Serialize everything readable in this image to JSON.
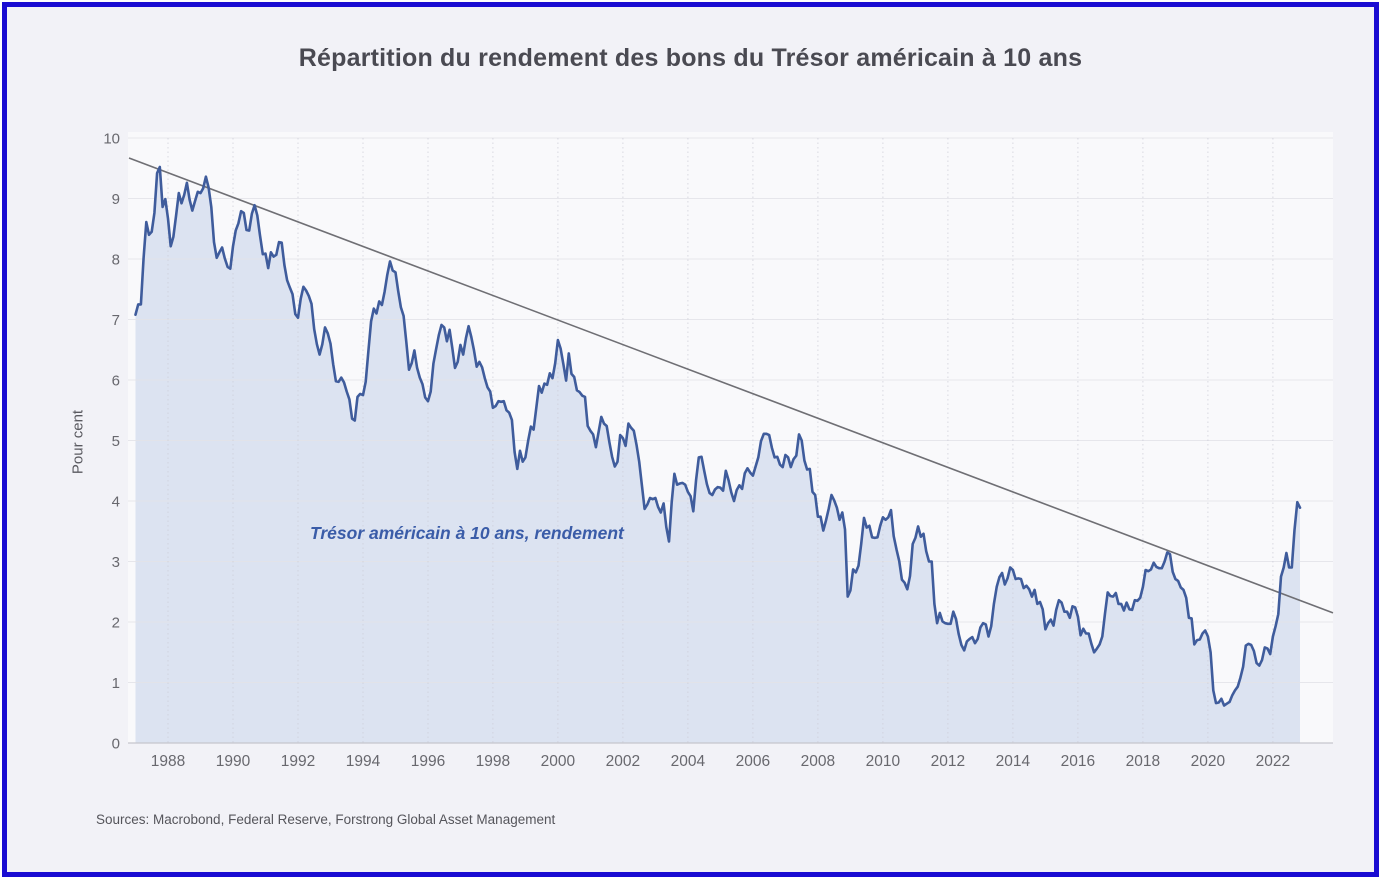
{
  "title": "Répartition du rendement des bons du Trésor américain à 10 ans",
  "y_axis_title": "Pour cent",
  "annotation": "Trésor américain à 10 ans, rendement",
  "source_note": "Sources: Macrobond, Federal Reserve, Forstrong Global Asset Management",
  "frame": {
    "border_color": "#1a0cd2",
    "background_color": "#f2f2f7"
  },
  "chart_data": {
    "type": "area",
    "title": "Répartition du rendement des bons du Trésor américain à 10 ans",
    "series_name": "Trésor américain à 10 ans, rendement",
    "xlabel": "",
    "ylabel": "Pour cent",
    "x_start_year": 1987,
    "frequency": "monthly",
    "xlim": [
      1986.77,
      2023.85
    ],
    "ylim": [
      0,
      10
    ],
    "x_ticks": [
      1988,
      1990,
      1992,
      1994,
      1996,
      1998,
      2000,
      2002,
      2004,
      2006,
      2008,
      2010,
      2012,
      2014,
      2016,
      2018,
      2020,
      2022
    ],
    "y_ticks": [
      0,
      1,
      2,
      3,
      4,
      5,
      6,
      7,
      8,
      9,
      10
    ],
    "grid": true,
    "legend_position": "none",
    "values": [
      7.08,
      7.25,
      7.25,
      8.02,
      8.61,
      8.4,
      8.45,
      8.76,
      9.42,
      9.52,
      8.86,
      8.99,
      8.67,
      8.21,
      8.37,
      8.72,
      9.09,
      8.92,
      9.06,
      9.26,
      8.98,
      8.8,
      8.96,
      9.11,
      9.09,
      9.17,
      9.36,
      9.18,
      8.86,
      8.28,
      8.02,
      8.11,
      8.19,
      8.01,
      7.87,
      7.84,
      8.21,
      8.47,
      8.59,
      8.79,
      8.76,
      8.48,
      8.47,
      8.75,
      8.89,
      8.72,
      8.39,
      8.08,
      8.09,
      7.85,
      8.11,
      8.04,
      8.07,
      8.28,
      8.27,
      7.9,
      7.65,
      7.53,
      7.42,
      7.09,
      7.03,
      7.34,
      7.54,
      7.48,
      7.39,
      7.26,
      6.84,
      6.59,
      6.42,
      6.59,
      6.87,
      6.77,
      6.6,
      6.26,
      5.98,
      5.97,
      6.04,
      5.96,
      5.81,
      5.68,
      5.36,
      5.33,
      5.72,
      5.77,
      5.75,
      5.97,
      6.48,
      6.97,
      7.18,
      7.1,
      7.3,
      7.24,
      7.46,
      7.74,
      7.96,
      7.81,
      7.78,
      7.47,
      7.2,
      7.06,
      6.63,
      6.17,
      6.28,
      6.49,
      6.2,
      6.04,
      5.93,
      5.71,
      5.65,
      5.81,
      6.27,
      6.51,
      6.74,
      6.91,
      6.87,
      6.64,
      6.83,
      6.53,
      6.2,
      6.3,
      6.58,
      6.42,
      6.69,
      6.89,
      6.71,
      6.49,
      6.22,
      6.3,
      6.21,
      6.03,
      5.88,
      5.81,
      5.54,
      5.57,
      5.65,
      5.64,
      5.65,
      5.5,
      5.46,
      5.34,
      4.81,
      4.53,
      4.83,
      4.65,
      4.72,
      5.0,
      5.23,
      5.18,
      5.54,
      5.9,
      5.79,
      5.94,
      5.92,
      6.11,
      6.03,
      6.28,
      6.66,
      6.52,
      6.26,
      5.99,
      6.44,
      6.1,
      6.05,
      5.83,
      5.8,
      5.74,
      5.72,
      5.24,
      5.16,
      5.1,
      4.89,
      5.14,
      5.39,
      5.28,
      5.24,
      4.97,
      4.73,
      4.57,
      4.65,
      5.09,
      5.04,
      4.91,
      5.28,
      5.21,
      5.16,
      4.93,
      4.65,
      4.26,
      3.87,
      3.94,
      4.05,
      4.03,
      4.05,
      3.9,
      3.81,
      3.96,
      3.57,
      3.33,
      3.98,
      4.45,
      4.27,
      4.29,
      4.3,
      4.27,
      4.15,
      4.08,
      3.83,
      4.35,
      4.72,
      4.73,
      4.5,
      4.28,
      4.13,
      4.1,
      4.19,
      4.23,
      4.22,
      4.17,
      4.5,
      4.34,
      4.14,
      4.0,
      4.18,
      4.26,
      4.2,
      4.46,
      4.54,
      4.47,
      4.42,
      4.57,
      4.72,
      4.99,
      5.11,
      5.11,
      5.09,
      4.88,
      4.72,
      4.73,
      4.6,
      4.56,
      4.76,
      4.72,
      4.56,
      4.69,
      4.75,
      5.1,
      5.0,
      4.67,
      4.52,
      4.53,
      4.15,
      4.1,
      3.74,
      3.74,
      3.51,
      3.68,
      3.88,
      4.1,
      4.01,
      3.89,
      3.69,
      3.81,
      3.53,
      2.42,
      2.52,
      2.87,
      2.82,
      2.93,
      3.29,
      3.72,
      3.56,
      3.59,
      3.4,
      3.39,
      3.4,
      3.59,
      3.73,
      3.69,
      3.73,
      3.85,
      3.42,
      3.2,
      3.01,
      2.7,
      2.65,
      2.54,
      2.76,
      3.29,
      3.39,
      3.58,
      3.41,
      3.46,
      3.17,
      3.0,
      3.0,
      2.3,
      1.98,
      2.15,
      2.01,
      1.98,
      1.97,
      1.97,
      2.17,
      2.05,
      1.8,
      1.62,
      1.53,
      1.68,
      1.72,
      1.75,
      1.65,
      1.72,
      1.91,
      1.98,
      1.96,
      1.76,
      1.93,
      2.3,
      2.58,
      2.74,
      2.81,
      2.62,
      2.72,
      2.9,
      2.86,
      2.71,
      2.72,
      2.71,
      2.56,
      2.6,
      2.54,
      2.42,
      2.53,
      2.3,
      2.33,
      2.21,
      1.88,
      1.98,
      2.04,
      1.94,
      2.2,
      2.36,
      2.32,
      2.17,
      2.17,
      2.07,
      2.26,
      2.24,
      2.09,
      1.78,
      1.89,
      1.81,
      1.81,
      1.64,
      1.5,
      1.56,
      1.63,
      1.76,
      2.14,
      2.49,
      2.43,
      2.42,
      2.48,
      2.3,
      2.3,
      2.19,
      2.32,
      2.21,
      2.2,
      2.36,
      2.35,
      2.4,
      2.58,
      2.86,
      2.84,
      2.87,
      2.98,
      2.91,
      2.89,
      2.89,
      3.0,
      3.15,
      3.12,
      2.83,
      2.71,
      2.68,
      2.57,
      2.53,
      2.4,
      2.07,
      2.06,
      1.63,
      1.7,
      1.71,
      1.81,
      1.86,
      1.76,
      1.5,
      0.87,
      0.66,
      0.67,
      0.73,
      0.62,
      0.65,
      0.68,
      0.79,
      0.87,
      0.93,
      1.08,
      1.26,
      1.61,
      1.64,
      1.62,
      1.52,
      1.32,
      1.28,
      1.37,
      1.58,
      1.56,
      1.47,
      1.76,
      1.93,
      2.13,
      2.75,
      2.9,
      3.14,
      2.9,
      2.9,
      3.52,
      3.98,
      3.89
    ],
    "trendline": {
      "x1": 1986.8,
      "y1": 9.67,
      "x2": 2023.85,
      "y2": 2.15
    },
    "colors": {
      "line": "#3f5c9c",
      "area_fill": "#dce3f1",
      "trend_line": "#6f6f74",
      "plot_background": "#f9f9fb",
      "grid_horizontal": "#e3e3e8",
      "grid_vertical": "#ccccd6",
      "axis_line": "#c6c6cd",
      "tick_text": "#68686e"
    }
  }
}
